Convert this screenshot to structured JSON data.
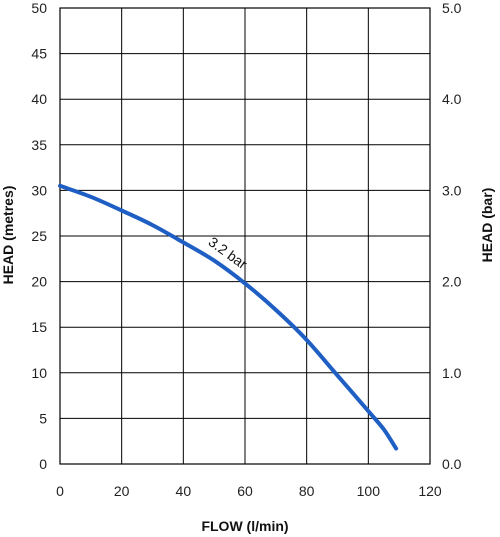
{
  "chart_data": {
    "type": "line",
    "xlabel": "FLOW (l/min)",
    "ylabel": "HEAD (metres)",
    "y2label": "HEAD (bar)",
    "xlim": [
      0,
      120
    ],
    "ylim": [
      0,
      50
    ],
    "y2lim": [
      0,
      5.0
    ],
    "grid": true,
    "x_ticks": [
      "0",
      "20",
      "40",
      "60",
      "80",
      "100",
      "120"
    ],
    "y_ticks": [
      "0",
      "5",
      "10",
      "15",
      "20",
      "25",
      "30",
      "35",
      "40",
      "45",
      "50"
    ],
    "y2_ticks": [
      "0.0",
      "1.0",
      "2.0",
      "3.0",
      "4.0",
      "5.0"
    ],
    "series": [
      {
        "name": "3.2 bar",
        "color": "#1f5fc4",
        "x": [
          0,
          10,
          20,
          30,
          40,
          50,
          60,
          70,
          80,
          90,
          100,
          105,
          109
        ],
        "y": [
          30.5,
          29.3,
          27.8,
          26.2,
          24.3,
          22.3,
          19.8,
          16.9,
          13.6,
          9.7,
          5.8,
          3.8,
          1.7
        ]
      }
    ],
    "annotations": [
      {
        "text": "3.2 bar",
        "x": 60,
        "y": 22.5
      }
    ]
  }
}
